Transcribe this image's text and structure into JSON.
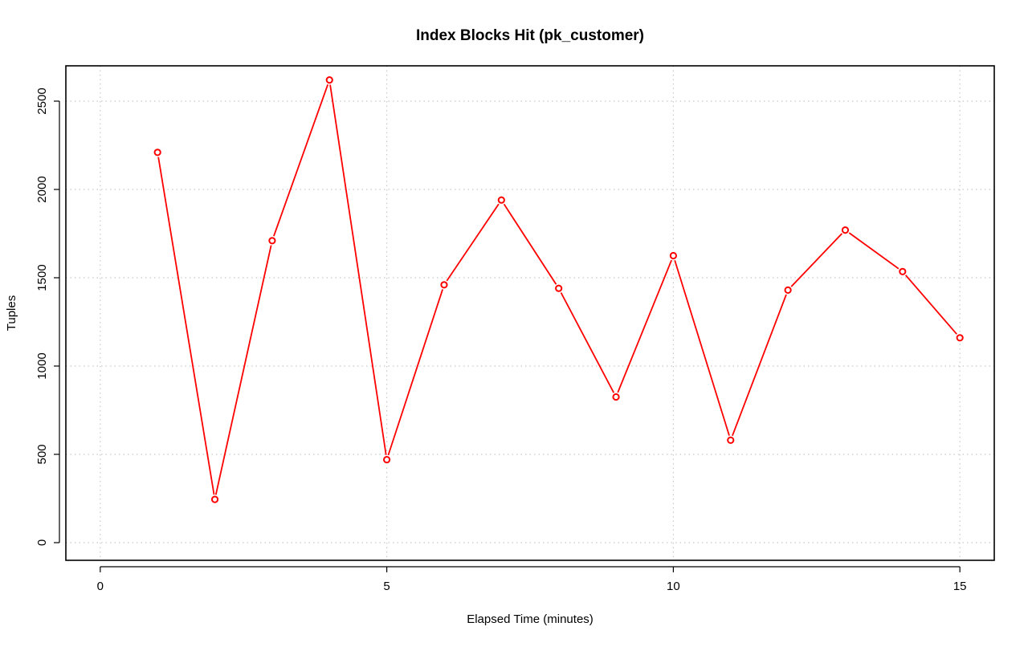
{
  "chart_data": {
    "type": "line",
    "title": "Index Blocks Hit (pk_customer)",
    "xlabel": "Elapsed Time (minutes)",
    "ylabel": "Tuples",
    "xlim": [
      -0.6,
      15.6
    ],
    "ylim": [
      -100,
      2700
    ],
    "xticks": [
      0,
      5,
      10,
      15
    ],
    "yticks": [
      0,
      500,
      1000,
      1500,
      2000,
      2500
    ],
    "grid": true,
    "series": [
      {
        "color": "#ff0000",
        "x": [
          1,
          2,
          3,
          4,
          5,
          6,
          7,
          8,
          9,
          10,
          11,
          12,
          13,
          14,
          15
        ],
        "values": [
          2210,
          245,
          1710,
          2620,
          470,
          1460,
          1940,
          1440,
          825,
          1625,
          580,
          1430,
          1770,
          1535,
          1160
        ]
      }
    ]
  }
}
